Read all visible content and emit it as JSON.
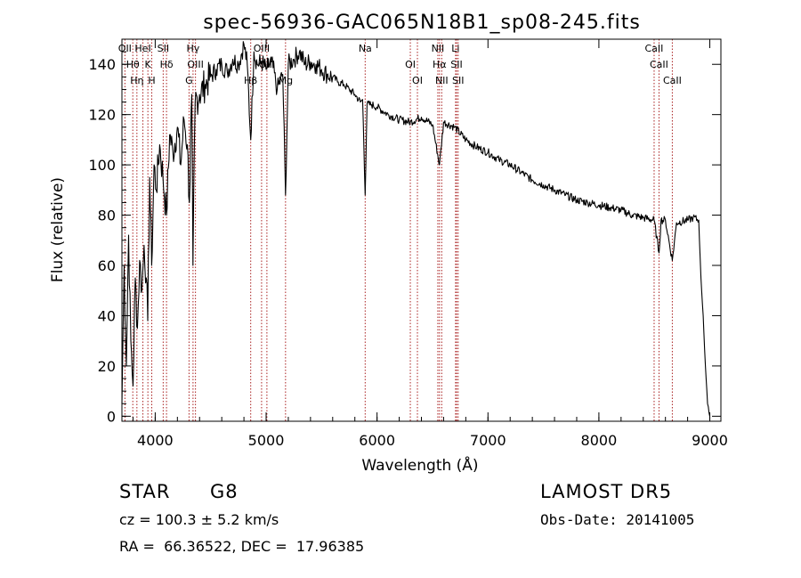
{
  "chart_data": {
    "type": "line",
    "title": "spec-56936-GAC065N18B1_sp08-245.fits",
    "xlabel": "Wavelength (Å)",
    "ylabel": "Flux (relative)",
    "xlim": [
      3700,
      9100
    ],
    "ylim": [
      -2,
      150
    ],
    "xticks": [
      4000,
      5000,
      6000,
      7000,
      8000,
      9000
    ],
    "yticks": [
      0,
      20,
      40,
      60,
      80,
      100,
      120,
      140
    ],
    "grid": false,
    "line_color": "#000000",
    "marker_color": "#aa2222",
    "series": [
      {
        "x": [
          3700,
          3720,
          3740,
          3760,
          3780,
          3800,
          3820,
          3840,
          3860,
          3880,
          3900,
          3920,
          3933,
          3950,
          3968,
          3990,
          4010,
          4040,
          4070,
          4102,
          4130,
          4160,
          4200,
          4230,
          4260,
          4290,
          4308,
          4330,
          4340,
          4360,
          4400,
          4450,
          4500,
          4550,
          4600,
          4650,
          4700,
          4750,
          4800,
          4830,
          4861,
          4890,
          4920,
          4960,
          5000,
          5050,
          5100,
          5150,
          5175,
          5200,
          5250,
          5300,
          5350,
          5400,
          5450,
          5500,
          5550,
          5600,
          5650,
          5700,
          5750,
          5800,
          5850,
          5870,
          5893,
          5910,
          5950,
          6000,
          6100,
          6200,
          6300,
          6400,
          6500,
          6563,
          6600,
          6700,
          6800,
          6900,
          7000,
          7100,
          7200,
          7300,
          7400,
          7500,
          7600,
          7700,
          7800,
          7900,
          8000,
          8100,
          8200,
          8300,
          8400,
          8498,
          8542,
          8560,
          8600,
          8662,
          8700,
          8800,
          8850,
          8900,
          8920,
          8940,
          8960,
          8980,
          9000
        ],
        "y": [
          5,
          60,
          20,
          72,
          30,
          12,
          55,
          35,
          62,
          50,
          68,
          55,
          38,
          95,
          60,
          100,
          90,
          108,
          95,
          80,
          112,
          105,
          115,
          100,
          118,
          108,
          85,
          128,
          60,
          125,
          128,
          132,
          135,
          138,
          140,
          137,
          142,
          140,
          148,
          140,
          110,
          145,
          140,
          141,
          138,
          141,
          130,
          136,
          88,
          140,
          142,
          145,
          140,
          141,
          140,
          138,
          136,
          135,
          133,
          132,
          130,
          128,
          125,
          126,
          88,
          124,
          124,
          123,
          120,
          118,
          117,
          119,
          116,
          100,
          117,
          115,
          110,
          107,
          105,
          102,
          100,
          97,
          94,
          92,
          90,
          88,
          86,
          85,
          84,
          83,
          82,
          80,
          79,
          78,
          65,
          78,
          78,
          62,
          77,
          78,
          79,
          78,
          55,
          40,
          20,
          5,
          0
        ]
      }
    ],
    "lines": [
      {
        "wave": 3727,
        "labels": [
          "OII"
        ]
      },
      {
        "wave": 3798,
        "labels": [
          "Hθ"
        ]
      },
      {
        "wave": 3835,
        "labels": [
          "Hη"
        ]
      },
      {
        "wave": 3889,
        "labels": [
          "HeI"
        ]
      },
      {
        "wave": 3934,
        "labels": [
          "K"
        ]
      },
      {
        "wave": 3969,
        "labels": [
          "H"
        ]
      },
      {
        "wave": 4072,
        "labels": [
          "SII"
        ]
      },
      {
        "wave": 4102,
        "labels": [
          "Hδ"
        ]
      },
      {
        "wave": 4305,
        "labels": [
          "G"
        ]
      },
      {
        "wave": 4341,
        "labels": [
          "Hγ"
        ]
      },
      {
        "wave": 4363,
        "labels": [
          "OIII"
        ]
      },
      {
        "wave": 4861,
        "labels": [
          "Hβ"
        ]
      },
      {
        "wave": 4959,
        "labels": [
          "OIII"
        ]
      },
      {
        "wave": 5007,
        "labels": [
          "OIII"
        ]
      },
      {
        "wave": 5175,
        "labels": [
          "Mg"
        ]
      },
      {
        "wave": 5893,
        "labels": [
          "Na"
        ]
      },
      {
        "wave": 6300,
        "labels": [
          "OI"
        ]
      },
      {
        "wave": 6364,
        "labels": [
          "OI"
        ]
      },
      {
        "wave": 6548,
        "labels": [
          "NII"
        ]
      },
      {
        "wave": 6563,
        "labels": [
          "Hα"
        ]
      },
      {
        "wave": 6583,
        "labels": [
          "NII"
        ]
      },
      {
        "wave": 6708,
        "labels": [
          "Li"
        ]
      },
      {
        "wave": 6717,
        "labels": [
          "SII"
        ]
      },
      {
        "wave": 6731,
        "labels": [
          "SII"
        ]
      },
      {
        "wave": 8498,
        "labels": [
          "CaII"
        ]
      },
      {
        "wave": 8542,
        "labels": [
          "CaII"
        ]
      },
      {
        "wave": 8662,
        "labels": [
          "CaII"
        ]
      }
    ]
  },
  "info": {
    "object_class": "STAR",
    "subclass": "G8",
    "survey": "LAMOST DR5",
    "velocity": "cz = 100.3 ± 5.2 km/s",
    "obs_date": "Obs-Date: 20141005",
    "coords": "RA =  66.36522, DEC =  17.96385"
  }
}
